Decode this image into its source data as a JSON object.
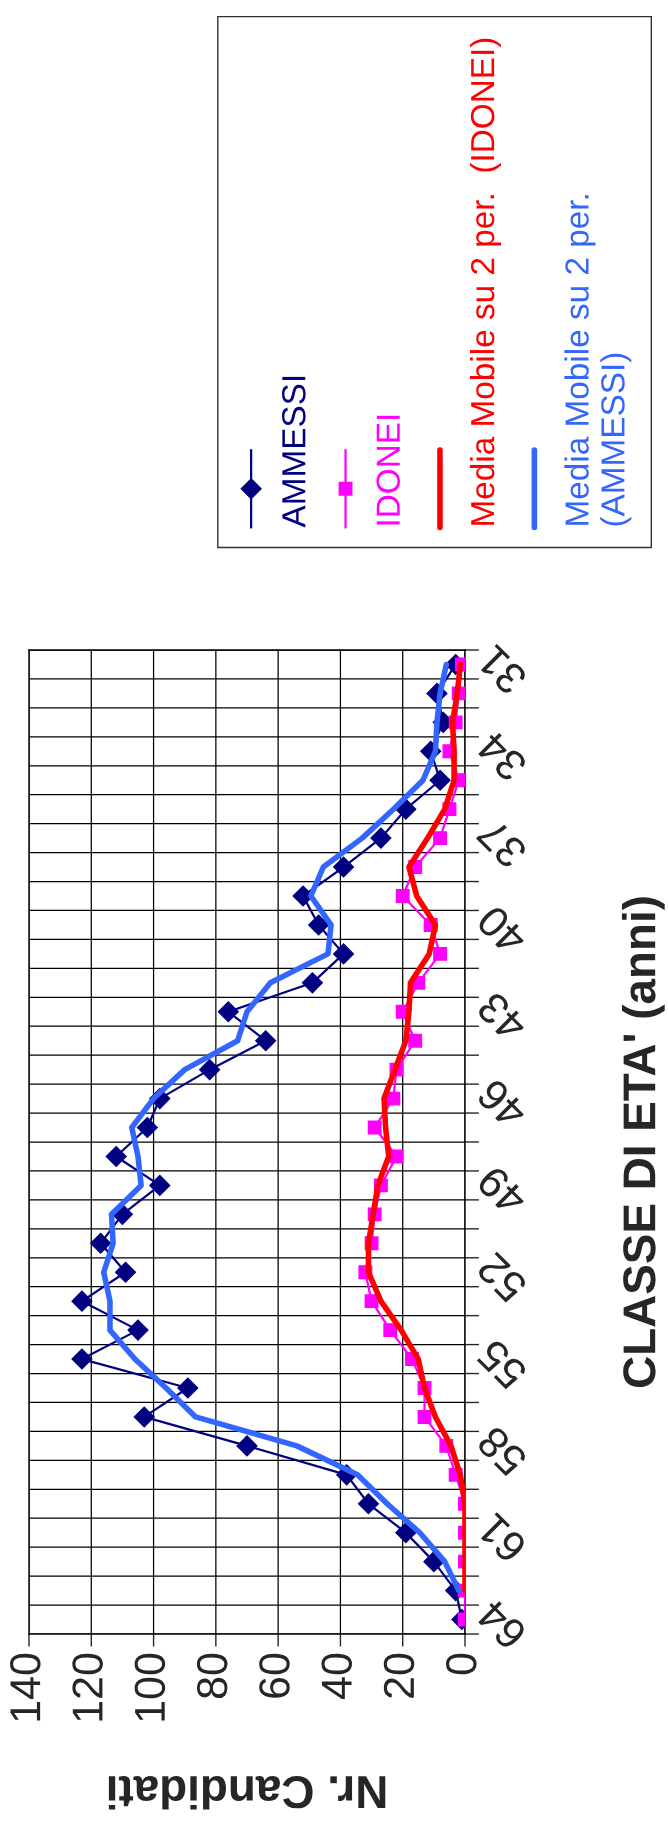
{
  "chart_data": {
    "type": "line",
    "orientation": "horizontal",
    "xlabel": "Nr. Candidati",
    "ylabel": "CLASSE DI ETA' (anni)",
    "categories": [
      "31",
      null,
      null,
      "34",
      null,
      null,
      "37",
      null,
      null,
      "40",
      null,
      null,
      "43",
      null,
      null,
      "46",
      null,
      null,
      "49",
      null,
      null,
      "52",
      null,
      null,
      "55",
      null,
      null,
      "58",
      null,
      null,
      "61",
      null,
      null,
      "64"
    ],
    "xlim": [
      140,
      0
    ],
    "xticks": [
      0,
      20,
      40,
      60,
      80,
      100,
      120,
      140
    ],
    "grid": true,
    "legend": "top right",
    "series": [
      {
        "name": "AMMESSI",
        "color": "#000080",
        "marker": "diamond",
        "values": [
          3,
          9,
          7,
          11,
          8,
          19,
          27,
          39,
          52,
          47,
          39,
          49,
          76,
          64,
          82,
          98,
          102,
          112,
          98,
          110,
          117,
          109,
          123,
          105,
          123,
          89,
          103,
          70,
          38,
          31,
          19,
          10,
          3,
          1
        ]
      },
      {
        "name": "IDONEI",
        "color": "#ff00ff",
        "marker": "square",
        "values": [
          1,
          2,
          3,
          5,
          2,
          5,
          8,
          16,
          20,
          11,
          8,
          15,
          20,
          16,
          22,
          23,
          29,
          22,
          27,
          29,
          30,
          32,
          30,
          24,
          17,
          13,
          13,
          6,
          3,
          0,
          0,
          0,
          0,
          0
        ]
      },
      {
        "name": "Media Mobile su 2 per.  (IDONEI)",
        "color": "#ff0000",
        "marker": "none",
        "values": [
          1.5,
          2.5,
          4,
          3.5,
          3.5,
          6.5,
          12,
          18,
          15.5,
          9.5,
          11.5,
          17.5,
          18,
          19,
          22.5,
          26,
          25.5,
          24.5,
          28,
          29.5,
          31,
          31,
          27,
          20.5,
          15,
          13,
          9.5,
          4.5,
          1.5,
          0,
          0,
          0,
          0,
          null
        ]
      },
      {
        "name": "Media Mobile su 2 per.\n(AMMESSI)",
        "color": "#3366ff",
        "marker": "none",
        "values": [
          6,
          8,
          9,
          9.5,
          13.5,
          23,
          33,
          45.5,
          49.5,
          43,
          44,
          62.5,
          70,
          73,
          90,
          100,
          107,
          105,
          104,
          113.5,
          113,
          116,
          114,
          114,
          106,
          96,
          86.5,
          54,
          34.5,
          25,
          14.5,
          6.5,
          2,
          null
        ]
      }
    ]
  }
}
